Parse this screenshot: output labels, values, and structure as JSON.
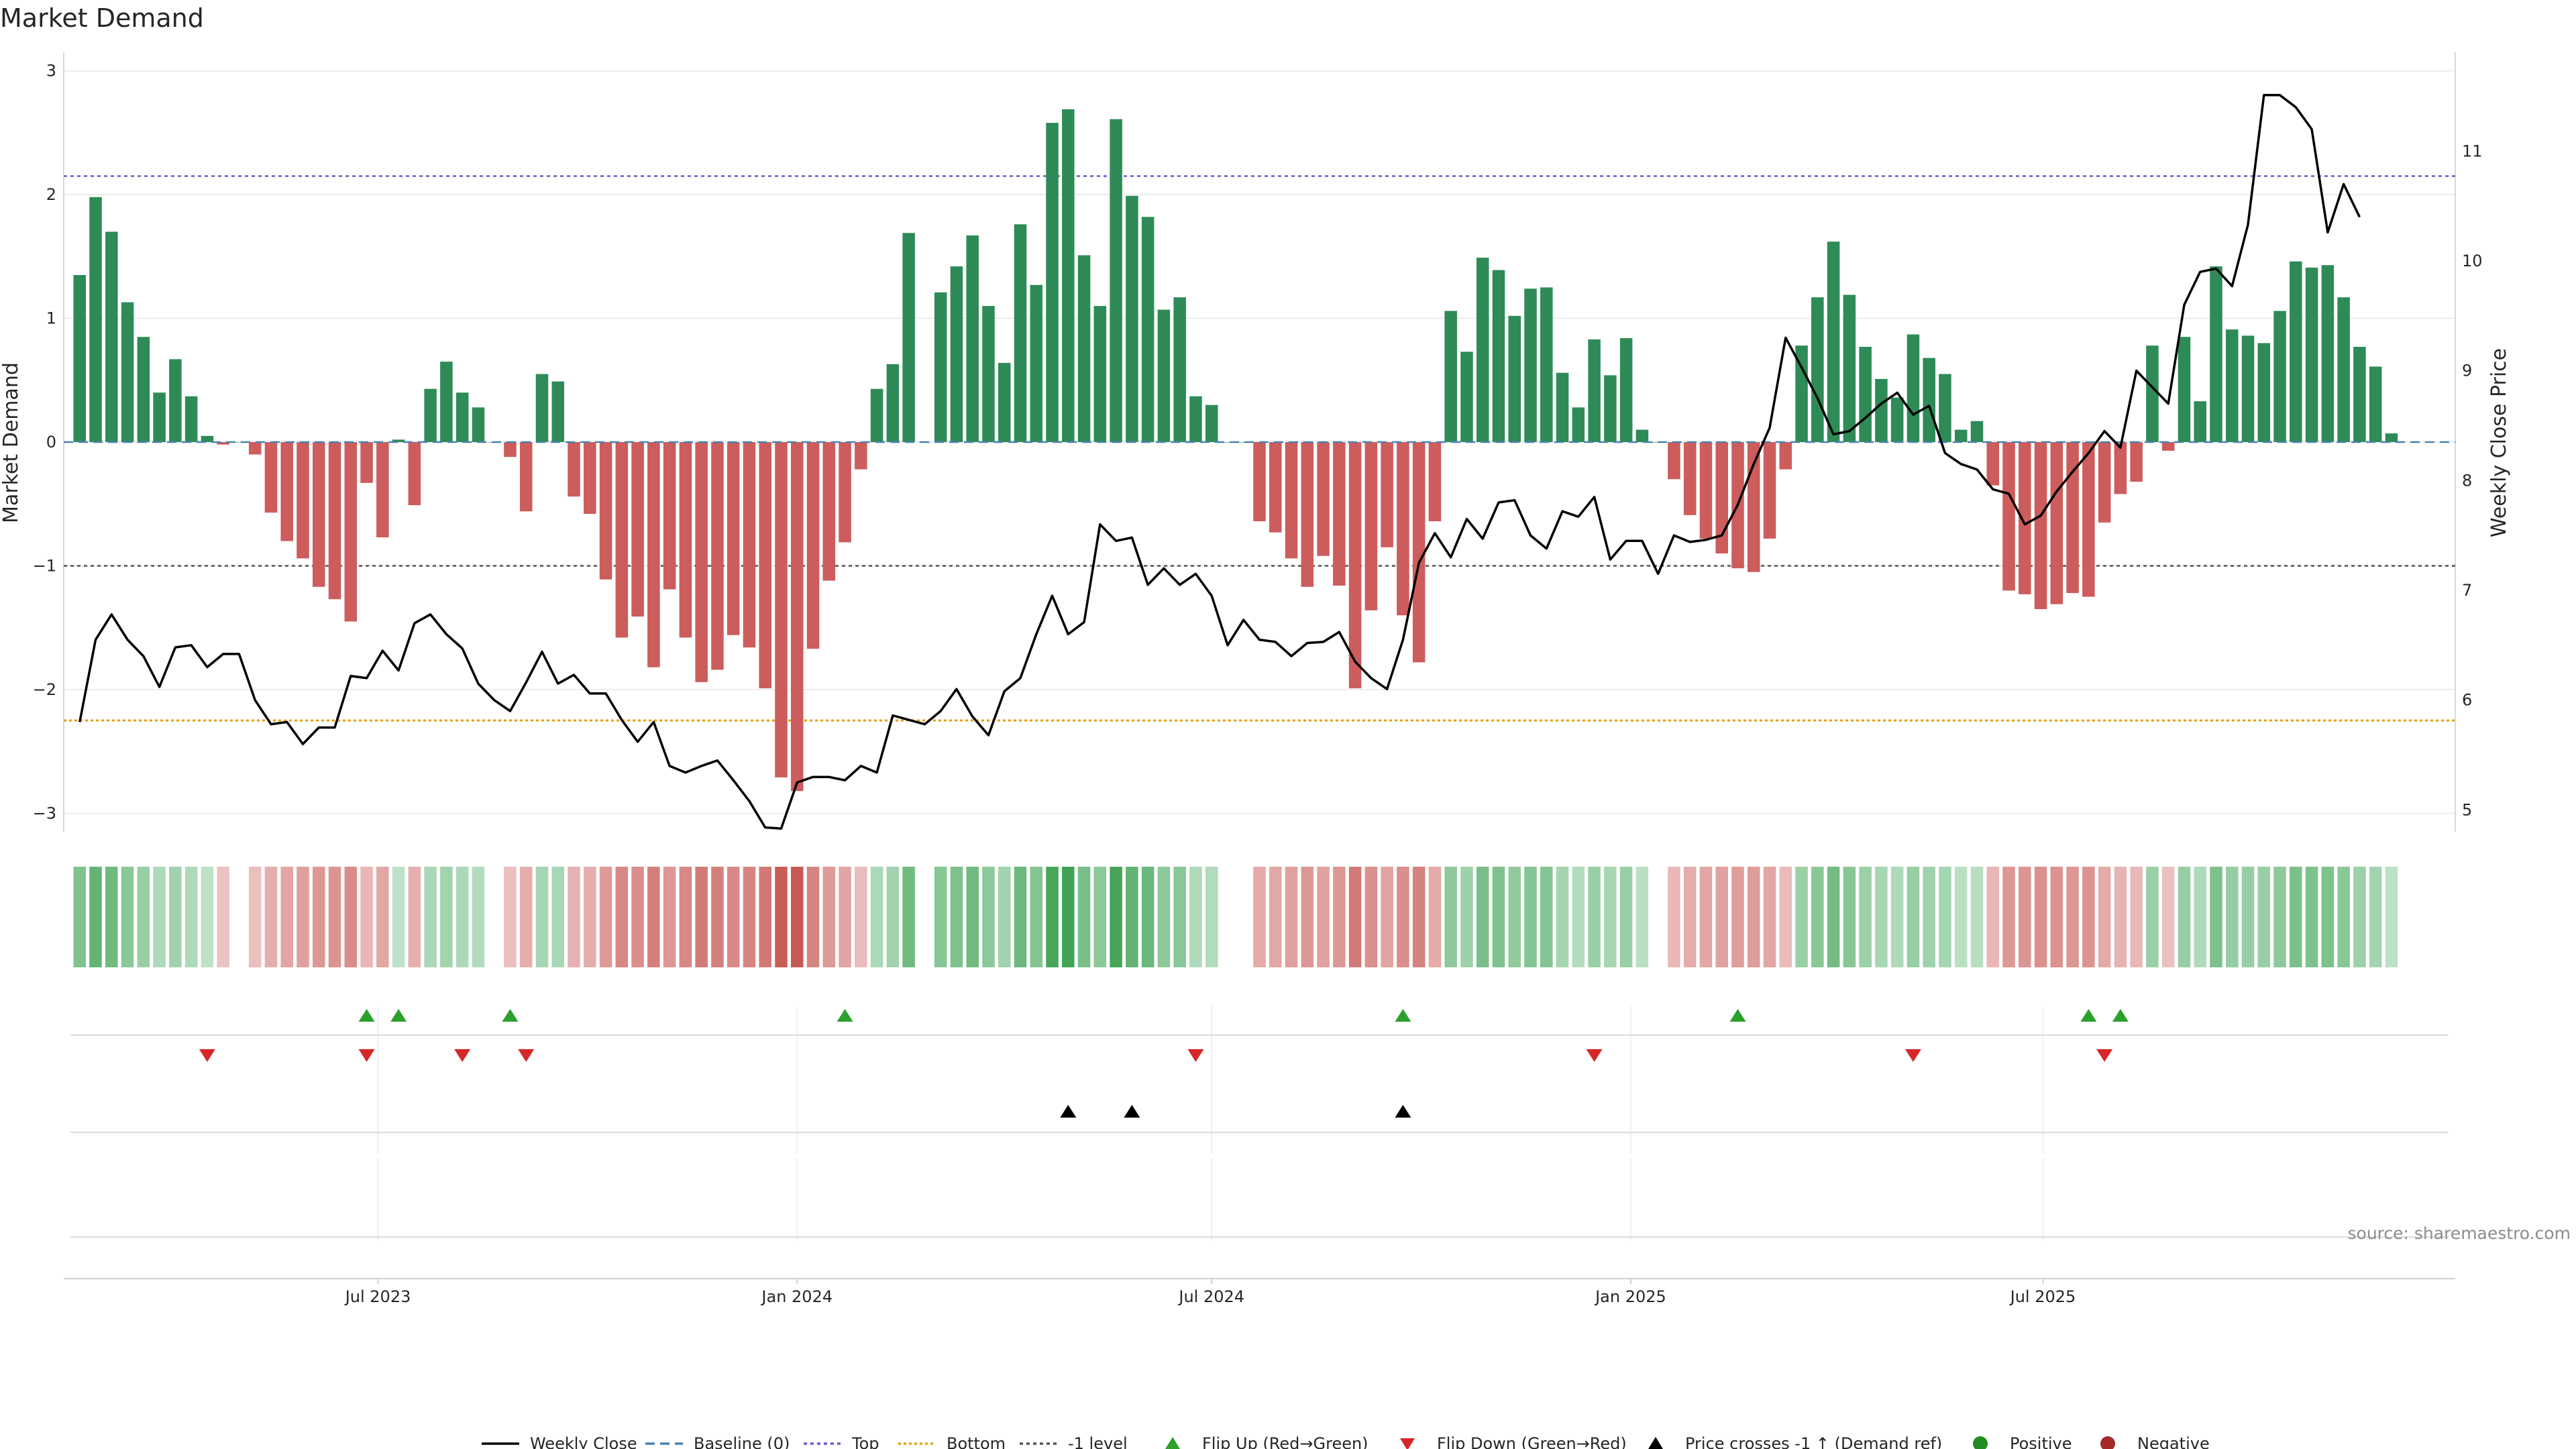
{
  "source_text": "source: sharemaestro.com",
  "colors": {
    "positive": "#2e8b57",
    "negative": "#cd5c5c",
    "price_line": "#000000",
    "baseline": "#4682b4",
    "top": "#6a5acd",
    "bottom": "#e69f00",
    "minus_one": "#555555",
    "flip_up": "#2ca02c",
    "flip_down": "#d62728",
    "cross": "#000000"
  },
  "chart_data": {
    "type": "bar",
    "title": "Market Demand",
    "ylabel": "Market Demand",
    "y2label": "Weekly Close Price",
    "ylim": [
      -3.15,
      3.15
    ],
    "y2lim": [
      4.8,
      11.9
    ],
    "yticks": [
      "3",
      "2",
      "1",
      "0",
      "−1",
      "−2",
      "−3"
    ],
    "yticks_values": [
      3,
      2,
      1,
      0,
      -1,
      -2,
      -3
    ],
    "y2ticks": [
      "11",
      "10",
      "9",
      "8",
      "7",
      "6",
      "5"
    ],
    "y2ticks_values": [
      11,
      10,
      9,
      8,
      7,
      6,
      5
    ],
    "xticks": [
      "Jul 2023",
      "Jan 2024",
      "Jul 2024",
      "Jan 2025",
      "Jul 2025"
    ],
    "xticks_dates": [
      "2023-07-01",
      "2024-01-01",
      "2024-07-01",
      "2025-01-01",
      "2025-07-01"
    ],
    "x_range": [
      "2023-02-13",
      "2025-12-29"
    ],
    "weeks": {
      "first": "2023-02-20",
      "count": 144
    },
    "levels": {
      "top": 2.15,
      "bottom": -2.25,
      "minus_one": -1,
      "baseline": 0
    },
    "grid": true,
    "legend_position": "bottom",
    "series": [
      {
        "name": "Market Demand",
        "values": [
          1.35,
          1.98,
          1.7,
          1.13,
          0.85,
          0.4,
          0.67,
          0.37,
          0.05,
          -0.02,
          0.0,
          -0.1,
          -0.57,
          -0.8,
          -0.94,
          -1.17,
          -1.27,
          -1.45,
          -0.33,
          -0.77,
          0.02,
          -0.51,
          0.43,
          0.65,
          0.4,
          0.28,
          0.0,
          -0.12,
          -0.56,
          0.55,
          0.49,
          -0.44,
          -0.58,
          -1.11,
          -1.58,
          -1.41,
          -1.82,
          -1.19,
          -1.58,
          -1.94,
          -1.84,
          -1.56,
          -1.66,
          -1.99,
          -2.71,
          -2.82,
          -1.67,
          -1.12,
          -0.81,
          -0.22,
          0.43,
          0.63,
          1.69,
          0.0,
          1.21,
          1.42,
          1.67,
          1.1,
          0.64,
          1.76,
          1.27,
          2.58,
          2.69,
          1.51,
          1.1,
          2.61,
          1.99,
          1.82,
          1.07,
          1.17,
          0.37,
          0.3,
          0.0,
          0.0,
          -0.64,
          -0.73,
          -0.94,
          -1.17,
          -0.92,
          -1.16,
          -1.99,
          -1.36,
          -0.85,
          -1.4,
          -1.78,
          -0.64,
          1.06,
          0.73,
          1.49,
          1.39,
          1.02,
          1.24,
          1.25,
          0.56,
          0.28,
          0.83,
          0.54,
          0.84,
          0.1,
          0.0,
          -0.3,
          -0.59,
          -0.78,
          -0.9,
          -1.02,
          -1.05,
          -0.78,
          -0.22,
          0.78,
          1.17,
          1.62,
          1.19,
          0.77,
          0.51,
          0.36,
          0.87,
          0.68,
          0.55,
          0.1,
          0.17,
          -0.35,
          -1.2,
          -1.23,
          -1.35,
          -1.31,
          -1.22,
          -1.25,
          -0.65,
          -0.42,
          -0.32,
          0.78,
          -0.07,
          0.85,
          0.33,
          1.42,
          0.91,
          0.86,
          0.8,
          1.06,
          1.46,
          1.41,
          1.43,
          1.17,
          0.77,
          0.61,
          0.07
        ]
      },
      {
        "name": "Weekly Close",
        "values": [
          5.8,
          6.55,
          6.78,
          6.55,
          6.4,
          6.12,
          6.48,
          6.5,
          6.3,
          6.42,
          6.42,
          6.0,
          5.78,
          5.8,
          5.6,
          5.75,
          5.75,
          6.22,
          6.2,
          6.45,
          6.27,
          6.7,
          6.78,
          6.6,
          6.47,
          6.15,
          6.0,
          5.9,
          6.16,
          6.44,
          6.15,
          6.23,
          6.06,
          6.06,
          5.82,
          5.62,
          5.8,
          5.4,
          5.34,
          5.4,
          5.45,
          5.27,
          5.08,
          4.84,
          4.83,
          5.25,
          5.3,
          5.3,
          5.27,
          5.4,
          5.34,
          5.86,
          5.82,
          5.78,
          5.9,
          6.1,
          5.85,
          5.68,
          6.08,
          6.2,
          6.6,
          6.95,
          6.6,
          6.71,
          7.6,
          7.45,
          7.48,
          7.05,
          7.2,
          7.05,
          7.15,
          6.95,
          6.5,
          6.73,
          6.55,
          6.53,
          6.4,
          6.52,
          6.53,
          6.62,
          6.35,
          6.2,
          6.1,
          6.55,
          7.25,
          7.52,
          7.3,
          7.65,
          7.47,
          7.8,
          7.82,
          7.5,
          7.38,
          7.72,
          7.67,
          7.85,
          7.28,
          7.45,
          7.45,
          7.15,
          7.5,
          7.44,
          7.46,
          7.5,
          7.78,
          8.15,
          8.48,
          9.3,
          9.03,
          8.75,
          8.42,
          8.45,
          8.57,
          8.7,
          8.8,
          8.6,
          8.68,
          8.25,
          8.15,
          8.1,
          7.92,
          7.88,
          7.6,
          7.68,
          7.9,
          8.08,
          8.25,
          8.45,
          8.3,
          9.0,
          8.85,
          8.7,
          9.6,
          9.9,
          9.93,
          9.77,
          10.33,
          11.51,
          11.51,
          11.4,
          11.2,
          10.26,
          10.7,
          10.4
        ]
      }
    ],
    "heat_strip": {
      "note": "colored by Market Demand sign and magnitude"
    },
    "markers": {
      "flip_up": [
        "2023-06-26",
        "2023-07-10",
        "2023-08-28",
        "2024-01-22",
        "2024-09-23",
        "2025-02-17",
        "2025-07-21",
        "2025-08-04"
      ],
      "flip_down": [
        "2023-04-17",
        "2023-06-26",
        "2023-08-07",
        "2023-09-04",
        "2024-06-24",
        "2024-12-16",
        "2025-05-05",
        "2025-07-28"
      ],
      "price_cross": [
        "2024-04-29",
        "2024-05-27",
        "2024-09-23"
      ]
    },
    "legend": [
      "Weekly Close",
      "Baseline (0)",
      "Top",
      "Bottom",
      "-1 level",
      "Flip Up (Red→Green)",
      "Flip Down (Green→Red)",
      "Price crosses -1 ↑ (Demand ref)",
      "Positive",
      "Negative"
    ]
  }
}
